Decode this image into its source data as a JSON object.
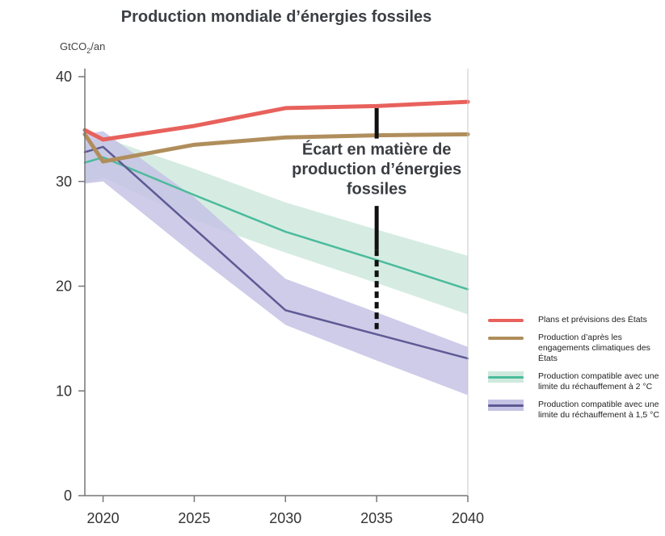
{
  "chart_data": {
    "type": "line",
    "title": "Production mondiale d’énergies fossiles",
    "ylabel": {
      "prefix": "GtCO",
      "sub": "2",
      "suffix": "/an"
    },
    "xlabel": "",
    "xlim": [
      2019,
      2040
    ],
    "ylim": [
      0,
      40
    ],
    "x_ticks": [
      2020,
      2025,
      2030,
      2035,
      2040
    ],
    "y_ticks": [
      0,
      10,
      20,
      30,
      40
    ],
    "grid": false,
    "legend_position": "right",
    "series": [
      {
        "name": "Plans et prévisions des États",
        "color": "#e8615c",
        "kind": "line",
        "x": [
          2019,
          2020,
          2025,
          2030,
          2035,
          2040
        ],
        "values": [
          34.9,
          34.0,
          35.3,
          37.0,
          37.2,
          37.6
        ]
      },
      {
        "name": "Production d’après les engagements climatiques des États",
        "color": "#b08e5c",
        "kind": "line",
        "x": [
          2019,
          2020,
          2025,
          2030,
          2035,
          2040
        ],
        "values": [
          34.5,
          31.9,
          33.5,
          34.2,
          34.4,
          34.5
        ]
      },
      {
        "name": "Production compatible avec une limite du réchauffement à 2 °C",
        "color": "#4bbb9b",
        "band_color": "#cfe9de",
        "kind": "line_band",
        "x": [
          2019,
          2020,
          2025,
          2030,
          2035,
          2040
        ],
        "values": [
          31.8,
          32.3,
          28.7,
          25.2,
          22.5,
          19.7
        ],
        "lower": [
          29.8,
          30.4,
          26.3,
          23.2,
          20.3,
          17.3
        ],
        "upper": [
          33.6,
          34.2,
          31.2,
          28.0,
          25.4,
          22.9
        ]
      },
      {
        "name": "Production compatible avec une limite du réchauffement à 1,5 °C",
        "color": "#5e5a94",
        "band_color": "#c5c3e4",
        "kind": "line_band",
        "x": [
          2019,
          2020,
          2025,
          2030,
          2035,
          2040
        ],
        "values": [
          32.8,
          33.3,
          25.5,
          17.7,
          15.4,
          13.1
        ],
        "lower": [
          29.8,
          30.0,
          23.0,
          16.3,
          12.9,
          9.6
        ],
        "upper": [
          34.5,
          34.8,
          28.5,
          20.7,
          17.5,
          14.2
        ]
      }
    ],
    "annotations": [
      {
        "text_lines": [
          "Écart en matière de",
          "production d’énergies",
          "fossiles"
        ],
        "x": 2035,
        "y_top": 37.0,
        "y_bottom": 15.9,
        "text_y_top": 34.4
      }
    ],
    "gap_marker_color": "#111111"
  }
}
